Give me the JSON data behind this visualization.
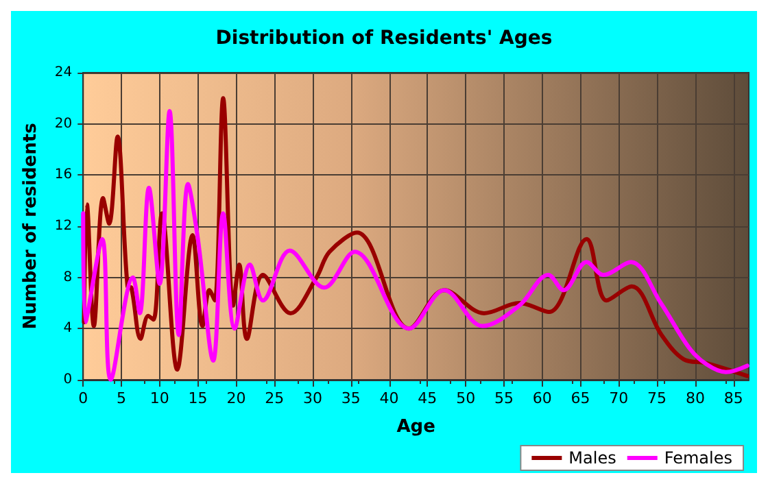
{
  "chart_data": {
    "type": "line",
    "title": "Distribution of Residents' Ages",
    "xlabel": "Age",
    "ylabel": "Number of residents",
    "xlim": [
      0,
      87
    ],
    "xticks": [
      0,
      5,
      10,
      15,
      20,
      25,
      30,
      35,
      40,
      45,
      50,
      55,
      60,
      65,
      70,
      75,
      80,
      85
    ],
    "ylim": [
      0,
      24
    ],
    "yticks": [
      0,
      4,
      8,
      12,
      16,
      20,
      24
    ],
    "grid": true,
    "legend": "bottom right",
    "marker": "none",
    "line_style": "solid",
    "series": [
      {
        "name": "Males",
        "color": "#990000",
        "x": [
          0.1,
          0.5,
          1.4,
          2.6,
          3.4,
          4.5,
          5.8,
          6.3,
          7.5,
          8.5,
          9.2,
          10.3,
          12.3,
          14.3,
          15.6,
          16.5,
          17.2,
          18.3,
          19.6,
          20.4,
          21.4,
          23.5,
          27.1,
          30.5,
          32.2,
          35.8,
          42.6,
          47.2,
          52.4,
          57,
          60.9,
          65.8,
          68.4,
          71.7,
          75.6,
          78.5,
          81.4,
          86.8
        ],
        "values": [
          4.5,
          13.7,
          4.2,
          14.2,
          12.2,
          19,
          7.3,
          7.2,
          3.2,
          5,
          4.7,
          13,
          0.8,
          11.3,
          4.2,
          7,
          6.2,
          22,
          5.8,
          9,
          3.2,
          8.2,
          5.2,
          8,
          10,
          11.5,
          4,
          7,
          5.2,
          6,
          5.3,
          11,
          6.2,
          7.3,
          3.5,
          1.6,
          1.3,
          0.3
        ]
      },
      {
        "name": "Females",
        "color": "#ff00ff",
        "x": [
          0,
          0.3,
          2.5,
          3.6,
          6.5,
          7.4,
          8.6,
          10,
          11.3,
          12.5,
          13.7,
          15,
          17,
          18.3,
          19.8,
          21.8,
          23.5,
          27,
          31.5,
          35.5,
          42.6,
          47.2,
          52.2,
          57,
          60.8,
          62.8,
          65.8,
          68,
          71.6,
          75.5,
          79.2,
          81.5,
          84,
          86.8
        ],
        "values": [
          13,
          4.5,
          11,
          0,
          8,
          5.2,
          15,
          7.5,
          21,
          3.5,
          15.3,
          11,
          1.5,
          13,
          4,
          9,
          6.2,
          10.1,
          7.2,
          10,
          4,
          7,
          4.2,
          5.8,
          8.2,
          7,
          9.2,
          8.2,
          9.2,
          6,
          2.5,
          1.2,
          0.6,
          1.1
        ]
      }
    ]
  }
}
